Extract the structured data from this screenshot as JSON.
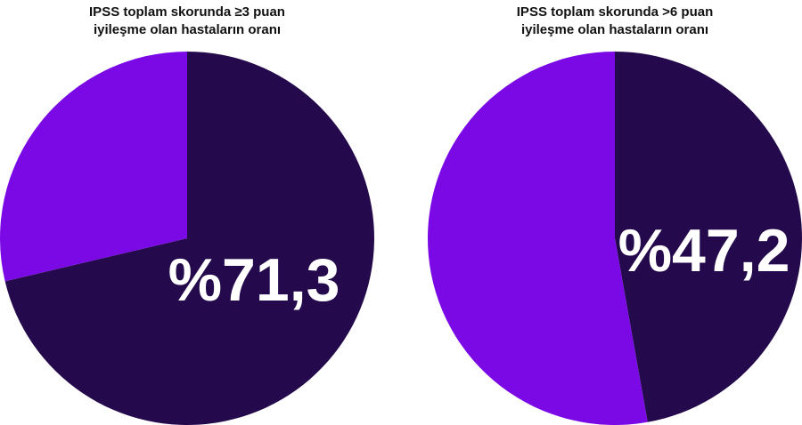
{
  "chart_data": [
    {
      "type": "pie",
      "title": [
        "IPSS toplam skorunda ≥3 puan",
        "iyileşme olan hastaların oranı"
      ],
      "values": [
        71.3,
        28.7
      ],
      "value_labels": [
        "%71,3",
        null
      ],
      "colors": [
        "#240a4c",
        "#7a09e6"
      ]
    },
    {
      "type": "pie",
      "title": [
        "IPSS toplam skorunda >6 puan",
        "iyileşme olan hastaların oranı"
      ],
      "values": [
        47.2,
        52.8
      ],
      "value_labels": [
        "%47,2",
        null
      ],
      "colors": [
        "#240a4c",
        "#7a09e6"
      ]
    }
  ]
}
